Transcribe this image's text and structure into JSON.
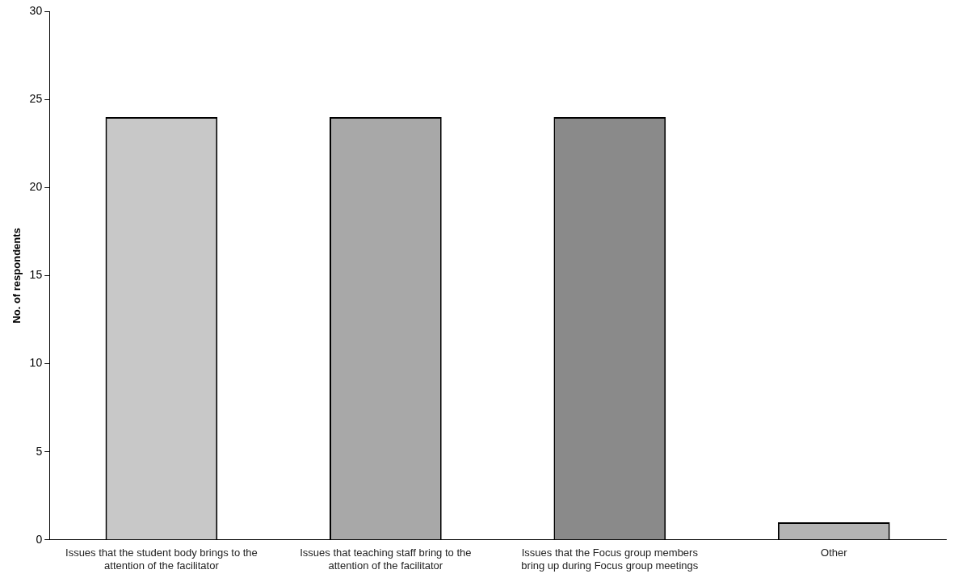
{
  "chart_data": {
    "type": "bar",
    "ylabel": "No. of respondents",
    "categories": [
      "Issues that the student body brings to the attention of the facilitator",
      "Issues that teaching staff bring to the attention of the facilitator",
      "Issues that the Focus group members bring up during Focus group meetings",
      "Other"
    ],
    "values": [
      24,
      24,
      24,
      1
    ],
    "colors": [
      "#c8c8c8",
      "#a8a8a8",
      "#8a8a8a",
      "#b4b4b4"
    ],
    "ylim": [
      0,
      30
    ],
    "yticks": [
      0,
      5,
      10,
      15,
      20,
      25,
      30
    ],
    "grid": false,
    "legend": false
  }
}
